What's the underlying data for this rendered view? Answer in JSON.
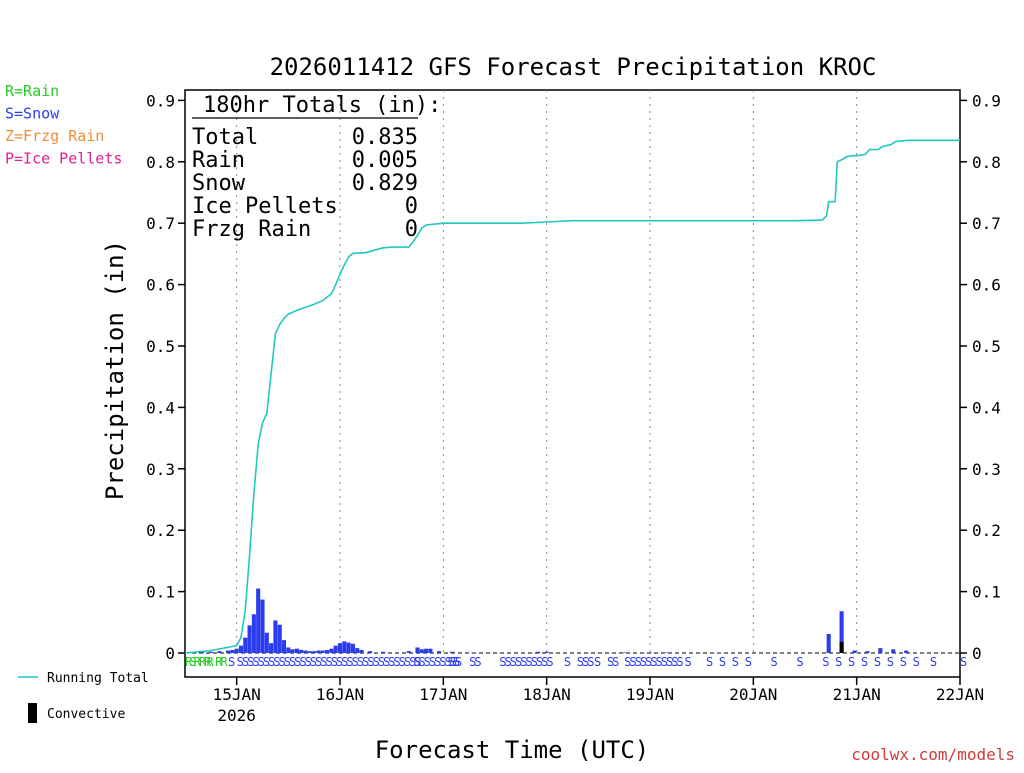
{
  "chart_data": {
    "type": "bar",
    "title": "2026011412 GFS Forecast Precipitation KROC",
    "ylabel": "Precipitation (in)",
    "xlabel": "Forecast Time (UTC)",
    "credit": "coolwx.com/models",
    "ylim": [
      0,
      0.92
    ],
    "y_ticks": [
      0,
      0.1,
      0.2,
      0.3,
      0.4,
      0.5,
      0.6,
      0.7,
      0.8,
      0.9
    ],
    "y_tick_labels": [
      "0",
      "0.1",
      "0.2",
      "0.3",
      "0.4",
      "0.5",
      "0.6",
      "0.7",
      "0.8",
      "0.9"
    ],
    "x_range_hours": [
      -12,
      168
    ],
    "x_ticks": [
      {
        "hour": 0,
        "label": "15JAN",
        "sub": "2026"
      },
      {
        "hour": 24,
        "label": "16JAN",
        "sub": ""
      },
      {
        "hour": 48,
        "label": "17JAN",
        "sub": ""
      },
      {
        "hour": 72,
        "label": "18JAN",
        "sub": ""
      },
      {
        "hour": 96,
        "label": "19JAN",
        "sub": ""
      },
      {
        "hour": 120,
        "label": "20JAN",
        "sub": ""
      },
      {
        "hour": 144,
        "label": "21JAN",
        "sub": ""
      },
      {
        "hour": 168,
        "label": "22JAN",
        "sub": ""
      }
    ],
    "type_legend": [
      {
        "label": "R=Rain",
        "color": "#22cc22"
      },
      {
        "label": "S=Snow",
        "color": "#2b3cf0"
      },
      {
        "label": "Z=Frzg Rain",
        "color": "#ef8d3a"
      },
      {
        "label": "P=Ice Pellets",
        "color": "#e0208c"
      }
    ],
    "series_legend": [
      {
        "label": "Running Total",
        "color": "#20c8c0"
      },
      {
        "label": "Convective",
        "color": "#000000"
      }
    ],
    "totals": {
      "heading": "180hr Totals (in):",
      "rows": [
        {
          "label": "Total",
          "value": "0.835"
        },
        {
          "label": "Rain",
          "value": "0.005"
        },
        {
          "label": "Snow",
          "value": "0.829"
        },
        {
          "label": "Ice Pellets",
          "value": "0"
        },
        {
          "label": "Frzg Rain",
          "value": "0"
        }
      ]
    },
    "running_total": {
      "color": "#20c8c0",
      "hours": [
        -12,
        -9,
        -6,
        -3,
        0,
        1,
        2,
        3,
        4,
        5,
        6,
        7,
        8,
        9,
        10,
        11,
        12,
        14,
        16,
        18,
        20,
        22,
        23,
        24,
        25,
        26,
        27,
        30,
        32,
        34,
        36,
        38,
        40,
        41,
        42,
        43,
        44,
        48,
        54,
        60,
        66,
        72,
        78,
        84,
        90,
        96,
        102,
        108,
        114,
        120,
        126,
        130,
        136,
        137,
        137.5,
        139,
        139.5,
        141,
        141.5,
        143,
        144,
        146,
        147,
        149,
        150,
        152,
        153,
        156,
        160,
        168
      ],
      "values": [
        0,
        0.002,
        0.004,
        0.008,
        0.012,
        0.025,
        0.07,
        0.16,
        0.26,
        0.34,
        0.375,
        0.39,
        0.455,
        0.52,
        0.535,
        0.545,
        0.552,
        0.558,
        0.563,
        0.568,
        0.574,
        0.585,
        0.6,
        0.617,
        0.632,
        0.645,
        0.651,
        0.652,
        0.656,
        0.66,
        0.661,
        0.661,
        0.661,
        0.67,
        0.68,
        0.692,
        0.697,
        0.7,
        0.7,
        0.7,
        0.7,
        0.702,
        0.704,
        0.704,
        0.704,
        0.704,
        0.704,
        0.704,
        0.704,
        0.704,
        0.704,
        0.704,
        0.705,
        0.712,
        0.735,
        0.735,
        0.8,
        0.805,
        0.808,
        0.81,
        0.81,
        0.812,
        0.82,
        0.82,
        0.825,
        0.828,
        0.833,
        0.835,
        0.835,
        0.835
      ]
    },
    "precip_bars": {
      "color": "#2b3cf0",
      "hours": [
        -10,
        -8,
        -6,
        -4,
        -2,
        -1,
        0,
        1,
        2,
        3,
        4,
        5,
        6,
        7,
        8,
        9,
        10,
        11,
        12,
        13,
        14,
        15,
        16,
        17,
        18,
        19,
        20,
        21,
        22,
        23,
        24,
        25,
        26,
        27,
        28,
        29,
        31,
        34,
        40,
        42,
        43,
        44,
        45,
        47,
        50,
        55,
        70,
        72,
        90,
        96,
        100,
        112,
        137.5,
        140.5,
        143.5,
        146.5,
        149.5,
        152.5,
        155.5
      ],
      "values": [
        0.001,
        0.002,
        0.002,
        0.003,
        0.004,
        0.005,
        0.007,
        0.012,
        0.025,
        0.045,
        0.063,
        0.105,
        0.087,
        0.033,
        0.016,
        0.053,
        0.046,
        0.021,
        0.009,
        0.006,
        0.007,
        0.005,
        0.004,
        0.003,
        0.003,
        0.004,
        0.004,
        0.005,
        0.007,
        0.012,
        0.016,
        0.019,
        0.017,
        0.015,
        0.008,
        0.005,
        0.003,
        0.002,
        0.003,
        0.009,
        0.006,
        0.007,
        0.007,
        0.003,
        0.002,
        0.001,
        0.002,
        0.002,
        0.001,
        0.001,
        0.001,
        0.001,
        0.031,
        0.068,
        0.004,
        0.003,
        0.008,
        0.006,
        0.004
      ]
    },
    "convective_bars": {
      "color": "#000000",
      "hours": [
        140.5
      ],
      "values": [
        0.018
      ]
    },
    "type_markers": {
      "row_y_value": -0.015,
      "markers": [
        {
          "hour": -12,
          "text": "R",
          "color": "#22cc22"
        },
        {
          "hour": -11,
          "text": "S",
          "color": "#22cc22"
        },
        {
          "hour": -10,
          "text": "RRR",
          "color": "#22cc22"
        },
        {
          "hour": -7,
          "text": "R",
          "color": "#22cc22"
        },
        {
          "hour": -5,
          "text": "RR",
          "color": "#22cc22"
        },
        {
          "hour": -2,
          "text": "S",
          "color": "#2b3cf0"
        },
        {
          "hour": 0,
          "text": "SSSSSSSSSSSSSSSSSSSSSSSSSSSSSSSSSSS",
          "color": "#2b3cf0"
        },
        {
          "hour": 41,
          "text": "SSSSSSSSS",
          "color": "#2b3cf0"
        },
        {
          "hour": 49,
          "text": "SS",
          "color": "#2b3cf0"
        },
        {
          "hour": 54,
          "text": "SS",
          "color": "#2b3cf0"
        },
        {
          "hour": 61,
          "text": "SSSSSSSSSS",
          "color": "#2b3cf0"
        },
        {
          "hour": 76,
          "text": "S",
          "color": "#2b3cf0"
        },
        {
          "hour": 79,
          "text": "SSS",
          "color": "#2b3cf0"
        },
        {
          "hour": 83,
          "text": "S",
          "color": "#2b3cf0"
        },
        {
          "hour": 86,
          "text": "SS",
          "color": "#2b3cf0"
        },
        {
          "hour": 90,
          "text": "SSSSSSSSSSS",
          "color": "#2b3cf0"
        },
        {
          "hour": 104,
          "text": "S",
          "color": "#2b3cf0"
        },
        {
          "hour": 109,
          "text": "S",
          "color": "#2b3cf0"
        },
        {
          "hour": 112,
          "text": "S",
          "color": "#2b3cf0"
        },
        {
          "hour": 115,
          "text": "S",
          "color": "#2b3cf0"
        },
        {
          "hour": 118,
          "text": "S",
          "color": "#2b3cf0"
        },
        {
          "hour": 124,
          "text": "S",
          "color": "#2b3cf0"
        },
        {
          "hour": 130,
          "text": "S",
          "color": "#2b3cf0"
        },
        {
          "hour": 136,
          "text": "S",
          "color": "#2b3cf0"
        },
        {
          "hour": 139,
          "text": "S",
          "color": "#2b3cf0"
        },
        {
          "hour": 142,
          "text": "S",
          "color": "#2b3cf0"
        },
        {
          "hour": 145,
          "text": "S",
          "color": "#2b3cf0"
        },
        {
          "hour": 148,
          "text": "S",
          "color": "#2b3cf0"
        },
        {
          "hour": 151,
          "text": "S",
          "color": "#2b3cf0"
        },
        {
          "hour": 154,
          "text": "S",
          "color": "#2b3cf0"
        },
        {
          "hour": 157,
          "text": "S",
          "color": "#2b3cf0"
        },
        {
          "hour": 161,
          "text": "S",
          "color": "#2b3cf0"
        },
        {
          "hour": 168,
          "text": "S",
          "color": "#2b3cf0"
        }
      ]
    }
  }
}
